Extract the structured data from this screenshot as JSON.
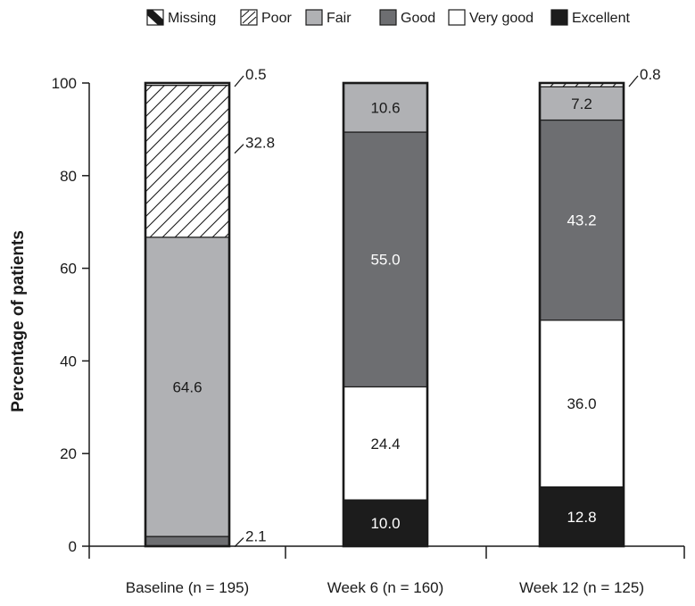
{
  "chart_data": {
    "type": "stacked-bar",
    "title": "",
    "xlabel": "",
    "ylabel": "Percentage of patients",
    "ylim": [
      0,
      100
    ],
    "yticks": [
      0,
      20,
      40,
      60,
      80,
      100
    ],
    "categories": [
      "Baseline (n = 195)",
      "Week 6 (n = 160)",
      "Week 12 (n = 125)"
    ],
    "legend_position": "top",
    "series": [
      {
        "name": "Excellent",
        "key": "excellent",
        "color": "#1c1c1c",
        "pattern": "solid",
        "label_color": "#ffffff",
        "values": [
          0,
          10.0,
          12.8
        ],
        "labels": [
          "",
          "10.0",
          "12.8"
        ]
      },
      {
        "name": "Very good",
        "key": "very-good",
        "color": "#ffffff",
        "pattern": "solid",
        "label_color": "#1a1a1a",
        "values": [
          0,
          24.4,
          36.0
        ],
        "labels": [
          "",
          "24.4",
          "36.0"
        ]
      },
      {
        "name": "Good",
        "key": "good",
        "color": "#6d6e71",
        "pattern": "solid",
        "label_color": "#ffffff",
        "values": [
          2.1,
          55.0,
          43.2
        ],
        "labels": [
          "2.1",
          "55.0",
          "43.2"
        ]
      },
      {
        "name": "Fair",
        "key": "fair",
        "color": "#b0b1b4",
        "pattern": "solid",
        "label_color": "#1a1a1a",
        "values": [
          64.6,
          10.6,
          7.2
        ],
        "labels": [
          "64.6",
          "10.6",
          "7.2"
        ]
      },
      {
        "name": "Poor",
        "key": "poor",
        "color": "#ffffff",
        "pattern": "hatch",
        "label_color": "#1a1a1a",
        "values": [
          32.8,
          0,
          0.8
        ],
        "labels": [
          "32.8",
          "",
          "0.8"
        ]
      },
      {
        "name": "Missing",
        "key": "missing",
        "color": "#1c1c1c",
        "pattern": "diag-split",
        "label_color": "#1a1a1a",
        "values": [
          0.5,
          0,
          0
        ],
        "labels": [
          "0.5",
          "",
          ""
        ]
      }
    ],
    "callouts": [
      {
        "category_index": 0,
        "series_key": "missing"
      },
      {
        "category_index": 0,
        "series_key": "poor"
      },
      {
        "category_index": 0,
        "series_key": "good"
      },
      {
        "category_index": 2,
        "series_key": "poor"
      }
    ],
    "legend_order": [
      "missing",
      "poor",
      "fair",
      "good",
      "very-good",
      "excellent"
    ]
  }
}
